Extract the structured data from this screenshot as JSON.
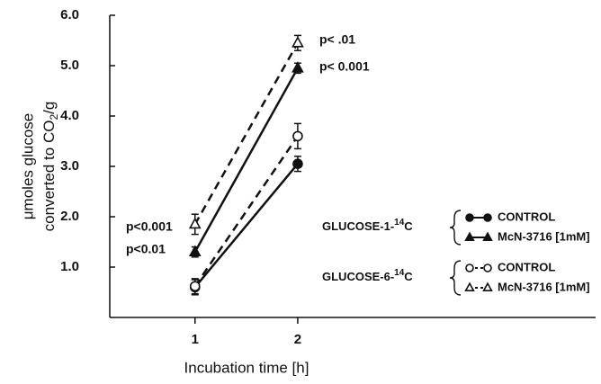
{
  "chart_data": {
    "type": "line",
    "xlabel": "Incubation time [h]",
    "ylabel": {
      "line1": "μmoles glucose",
      "line2": "converted to CO",
      "subscript": "2",
      "line2_end": "/g"
    },
    "x": [
      1,
      2
    ],
    "xlim": [
      0.17,
      4.9
    ],
    "xticks": [
      1,
      2
    ],
    "ylim": [
      0,
      6.0
    ],
    "yticks": [
      {
        "value": 1.0,
        "label": "1.0"
      },
      {
        "value": 2.0,
        "label": "2.0"
      },
      {
        "value": 3.0,
        "label": "3.0"
      },
      {
        "value": 4.0,
        "label": "4.0"
      },
      {
        "value": 5.0,
        "label": "5.0"
      },
      {
        "value": 6.0,
        "label": "6.0"
      }
    ],
    "series": [
      {
        "name": "CONTROL",
        "color": "#111111",
        "marker": "circle",
        "filled": true,
        "dashed": false,
        "values": [
          0.6,
          3.05
        ],
        "errors": [
          0.15,
          0.15
        ]
      },
      {
        "name": "McN-3716 [1mM]",
        "color": "#111111",
        "marker": "triangle",
        "filled": true,
        "dashed": false,
        "values": [
          1.3,
          4.95
        ],
        "errors": [
          0.1,
          0.1
        ]
      },
      {
        "name": "CONTROL",
        "color": "#111111",
        "marker": "circle",
        "filled": false,
        "dashed": true,
        "values": [
          0.62,
          3.6
        ],
        "errors": [
          0.15,
          0.25
        ]
      },
      {
        "name": "McN-3716 [1mM]",
        "color": "#111111",
        "marker": "triangle",
        "filled": false,
        "dashed": true,
        "values": [
          1.85,
          5.45
        ],
        "errors": [
          0.2,
          0.15
        ]
      }
    ],
    "legend_groups": [
      {
        "text": "GLUCOSE-1-",
        "superscript": "14",
        "suffix": "C"
      },
      {
        "text": "GLUCOSE-6-",
        "superscript": "14",
        "suffix": "C"
      }
    ],
    "annotations": [
      "p< .01",
      "p< 0.001",
      "p<0.001",
      "p<0.01"
    ]
  }
}
